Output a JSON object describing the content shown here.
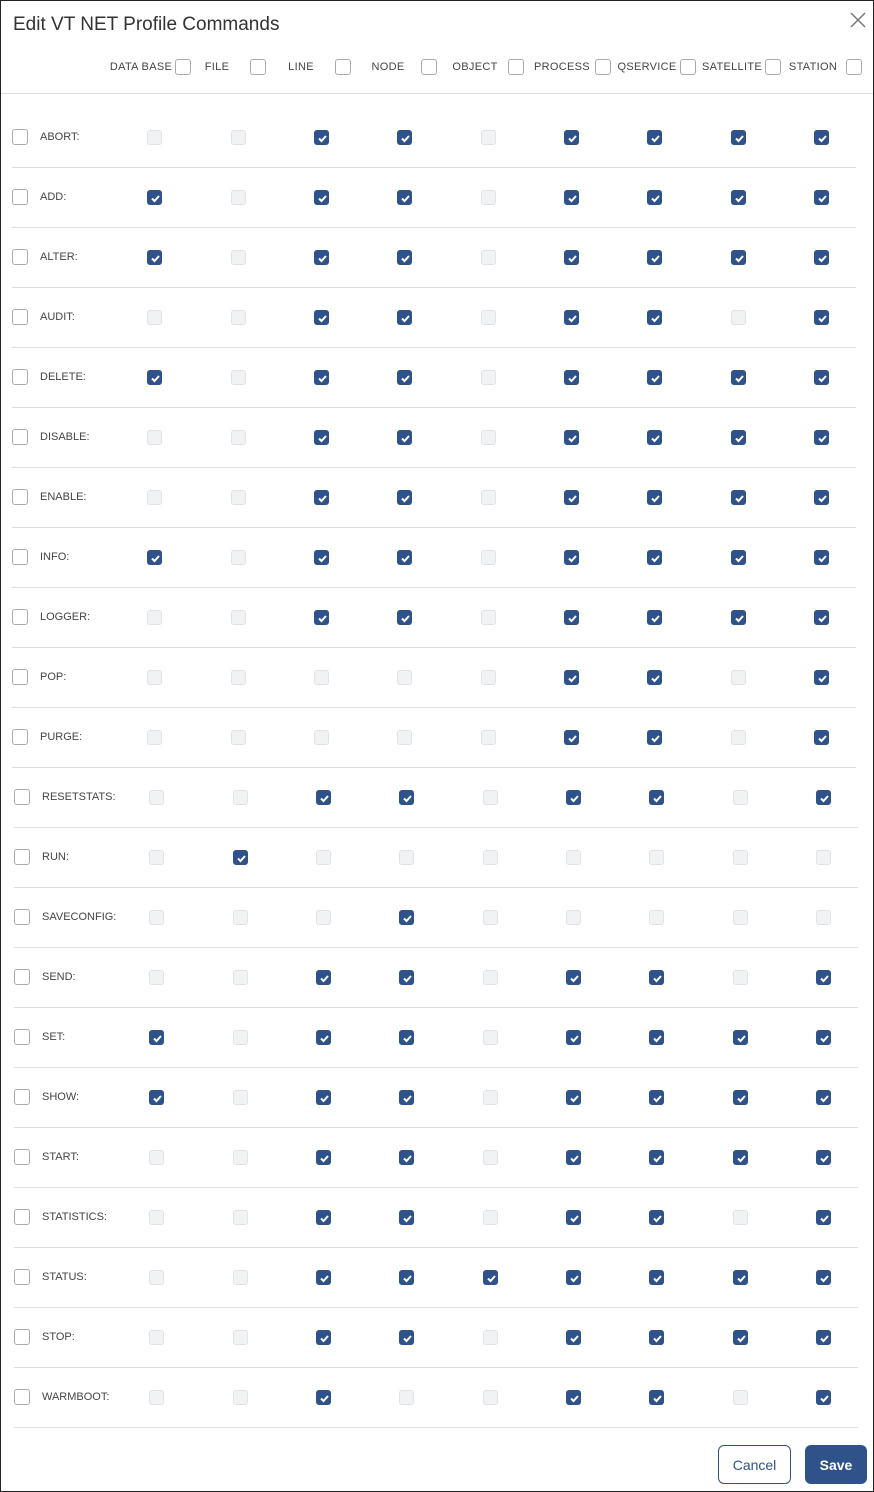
{
  "dialog": {
    "title": "Edit VT NET Profile Commands",
    "cancel_label": "Cancel",
    "save_label": "Save"
  },
  "colors": {
    "accent": "#2e5289"
  },
  "columns": [
    "DATA BASE",
    "FILE",
    "LINE",
    "NODE",
    "OBJECT",
    "PROCESS",
    "QSERVICE",
    "SATELLITE",
    "STATION"
  ],
  "rows": [
    {
      "label": "ABORT:",
      "checked": [
        0,
        0,
        1,
        1,
        0,
        1,
        1,
        1,
        1
      ]
    },
    {
      "label": "ADD:",
      "checked": [
        1,
        0,
        1,
        1,
        0,
        1,
        1,
        1,
        1
      ]
    },
    {
      "label": "ALTER:",
      "checked": [
        1,
        0,
        1,
        1,
        0,
        1,
        1,
        1,
        1
      ]
    },
    {
      "label": "AUDIT:",
      "checked": [
        0,
        0,
        1,
        1,
        0,
        1,
        1,
        0,
        1
      ]
    },
    {
      "label": "DELETE:",
      "checked": [
        1,
        0,
        1,
        1,
        0,
        1,
        1,
        1,
        1
      ]
    },
    {
      "label": "DISABLE:",
      "checked": [
        0,
        0,
        1,
        1,
        0,
        1,
        1,
        1,
        1
      ]
    },
    {
      "label": "ENABLE:",
      "checked": [
        0,
        0,
        1,
        1,
        0,
        1,
        1,
        1,
        1
      ]
    },
    {
      "label": "INFO:",
      "checked": [
        1,
        0,
        1,
        1,
        0,
        1,
        1,
        1,
        1
      ]
    },
    {
      "label": "LOGGER:",
      "checked": [
        0,
        0,
        1,
        1,
        0,
        1,
        1,
        1,
        1
      ]
    },
    {
      "label": "POP:",
      "checked": [
        0,
        0,
        0,
        0,
        0,
        1,
        1,
        0,
        1
      ]
    },
    {
      "label": "PURGE:",
      "checked": [
        0,
        0,
        0,
        0,
        0,
        1,
        1,
        0,
        1
      ]
    },
    {
      "label": "RESETSTATS:",
      "checked": [
        0,
        0,
        1,
        1,
        0,
        1,
        1,
        0,
        1
      ]
    },
    {
      "label": "RUN:",
      "checked": [
        0,
        1,
        0,
        0,
        0,
        0,
        0,
        0,
        0
      ]
    },
    {
      "label": "SAVECONFIG:",
      "checked": [
        0,
        0,
        0,
        1,
        0,
        0,
        0,
        0,
        0
      ]
    },
    {
      "label": "SEND:",
      "checked": [
        0,
        0,
        1,
        1,
        0,
        1,
        1,
        0,
        1
      ]
    },
    {
      "label": "SET:",
      "checked": [
        1,
        0,
        1,
        1,
        0,
        1,
        1,
        1,
        1
      ]
    },
    {
      "label": "SHOW:",
      "checked": [
        1,
        0,
        1,
        1,
        0,
        1,
        1,
        1,
        1
      ]
    },
    {
      "label": "START:",
      "checked": [
        0,
        0,
        1,
        1,
        0,
        1,
        1,
        1,
        1
      ]
    },
    {
      "label": "STATISTICS:",
      "checked": [
        0,
        0,
        1,
        1,
        0,
        1,
        1,
        0,
        1
      ]
    },
    {
      "label": "STATUS:",
      "checked": [
        0,
        0,
        1,
        1,
        1,
        1,
        1,
        1,
        1
      ]
    },
    {
      "label": "STOP:",
      "checked": [
        0,
        0,
        1,
        1,
        0,
        1,
        1,
        1,
        1
      ]
    },
    {
      "label": "WARMBOOT:",
      "checked": [
        0,
        0,
        1,
        0,
        0,
        1,
        1,
        0,
        1
      ]
    }
  ]
}
